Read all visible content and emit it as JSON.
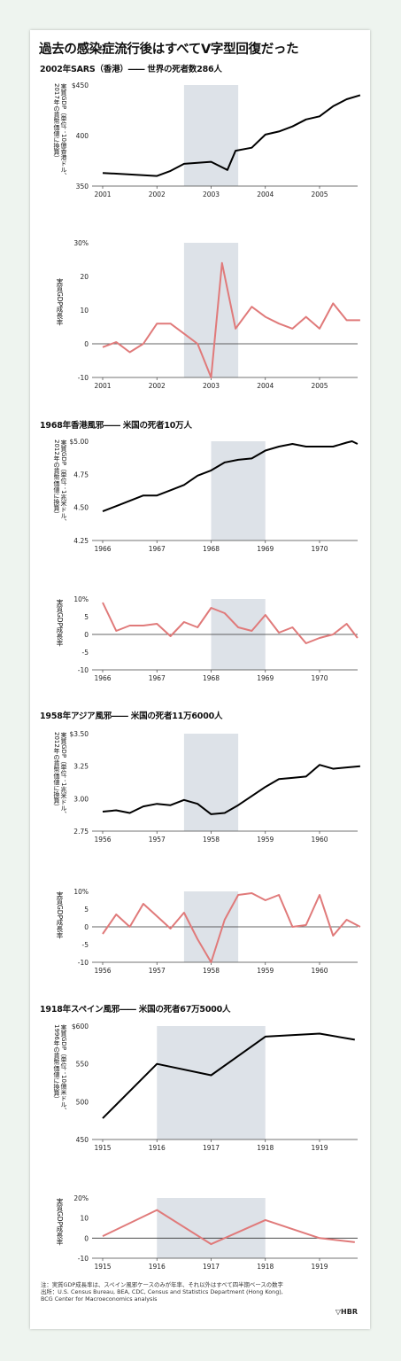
{
  "title": "過去の感染症流行後はすべてV字型回復だった",
  "note_line1": "注：実質GDP成長率は、スペイン風邪ケースのみが年率、それ以外はすべて四半期ベースの数字",
  "note_line2": "出所：U.S. Census Bureau, BEA, CDC, Census and Statistics Department (Hong Kong),",
  "note_line3": "BCG Center for Macroeconomics analysis",
  "logo": "▽HBR",
  "chart_data": [
    {
      "id": "sars",
      "section_title": "2002年SARS（香港）―― 世界の死者数286人",
      "xticks": [
        "2001",
        "2002",
        "2003",
        "2004",
        "2005"
      ],
      "xrange": [
        2001,
        2006
      ],
      "shade": [
        2002.5,
        2003.5
      ],
      "gdp": {
        "type": "line",
        "ylabel_line1": "実質GDP（単位：10億香港ドル、",
        "ylabel_line2": "2017年の貨幣価値に換算）",
        "yticks": [
          "$450",
          "400",
          "350"
        ],
        "ylim": [
          350,
          450
        ],
        "x": [
          2001.0,
          2002.0,
          2002.25,
          2002.5,
          2003.0,
          2003.3,
          2003.45,
          2003.75,
          2004.0,
          2004.25,
          2004.5,
          2004.75,
          2005.0,
          2005.25,
          2005.5,
          2005.75
        ],
        "values": [
          363,
          360,
          365,
          372,
          374,
          366,
          385,
          388,
          401,
          404,
          409,
          416,
          419,
          429,
          436,
          440
        ]
      },
      "growth": {
        "type": "line",
        "ylabel": "実質GDP成長率",
        "yticks": [
          "30%",
          "20",
          "10",
          "0",
          "-10"
        ],
        "ylim": [
          -10,
          30
        ],
        "x": [
          2001.0,
          2001.25,
          2001.5,
          2001.75,
          2002.0,
          2002.25,
          2002.5,
          2002.75,
          2003.0,
          2003.2,
          2003.45,
          2003.75,
          2004.0,
          2004.25,
          2004.5,
          2004.75,
          2005.0,
          2005.25,
          2005.5,
          2005.75
        ],
        "values": [
          -1,
          0.5,
          -2.5,
          0,
          6,
          6,
          3,
          0,
          -10,
          24,
          4.5,
          11,
          8,
          6,
          4.5,
          8,
          4.5,
          12,
          7,
          7
        ]
      }
    },
    {
      "id": "hk1968",
      "section_title": "1968年香港風邪―― 米国の死者10万人",
      "xticks": [
        "1966",
        "1967",
        "1968",
        "1969",
        "1970"
      ],
      "xrange": [
        1966,
        1971
      ],
      "shade": [
        1968.0,
        1969.0
      ],
      "gdp": {
        "type": "line",
        "ylabel_line1": "実質GDP（単位：1兆米ドル、",
        "ylabel_line2": "2012年の貨幣価値に換算）",
        "yticks": [
          "$5.00",
          "4.75",
          "4.50",
          "4.25"
        ],
        "ylim": [
          4.25,
          5.0
        ],
        "x": [
          1966.0,
          1966.25,
          1966.5,
          1966.75,
          1967.0,
          1967.25,
          1967.5,
          1967.75,
          1968.0,
          1968.25,
          1968.5,
          1968.75,
          1969.0,
          1969.25,
          1969.5,
          1969.75,
          1970.0,
          1970.25,
          1970.5,
          1970.6,
          1970.7
        ],
        "values": [
          4.47,
          4.51,
          4.55,
          4.59,
          4.59,
          4.63,
          4.67,
          4.74,
          4.78,
          4.84,
          4.86,
          4.87,
          4.93,
          4.96,
          4.98,
          4.96,
          4.96,
          4.96,
          4.99,
          5.0,
          4.98
        ]
      },
      "growth": {
        "type": "line",
        "ylabel": "実質GDP成長率",
        "yticks": [
          "10%",
          "5",
          "0",
          "-5",
          "-10"
        ],
        "ylim": [
          -10,
          10
        ],
        "x": [
          1966.0,
          1966.25,
          1966.5,
          1966.75,
          1967.0,
          1967.25,
          1967.5,
          1967.75,
          1968.0,
          1968.25,
          1968.5,
          1968.75,
          1969.0,
          1969.25,
          1969.5,
          1969.75,
          1970.0,
          1970.25,
          1970.5,
          1970.7
        ],
        "values": [
          9,
          1,
          2.5,
          2.5,
          3,
          -0.5,
          3.5,
          2,
          7.5,
          6,
          2,
          1,
          5.5,
          0.5,
          2,
          -2.5,
          -1,
          0,
          3,
          -1
        ]
      }
    },
    {
      "id": "asia1958",
      "section_title": "1958年アジア風邪―― 米国の死者11万6000人",
      "xticks": [
        "1956",
        "1957",
        "1958",
        "1959",
        "1960"
      ],
      "xrange": [
        1956,
        1961
      ],
      "shade": [
        1957.5,
        1958.5
      ],
      "gdp": {
        "type": "line",
        "ylabel_line1": "実質GDP（単位：1兆米ドル、",
        "ylabel_line2": "2012年の貨幣価値に換算）",
        "yticks": [
          "$3.50",
          "3.25",
          "3.00",
          "2.75"
        ],
        "ylim": [
          2.75,
          3.5
        ],
        "x": [
          1956.0,
          1956.25,
          1956.5,
          1956.75,
          1957.0,
          1957.25,
          1957.5,
          1957.75,
          1958.0,
          1958.25,
          1958.5,
          1958.75,
          1959.0,
          1959.25,
          1959.5,
          1959.75,
          1960.0,
          1960.25,
          1960.5,
          1960.75
        ],
        "values": [
          2.9,
          2.91,
          2.89,
          2.94,
          2.96,
          2.95,
          2.99,
          2.96,
          2.88,
          2.89,
          2.95,
          3.02,
          3.09,
          3.15,
          3.16,
          3.17,
          3.26,
          3.23,
          3.24,
          3.25
        ]
      },
      "growth": {
        "type": "line",
        "ylabel": "実質GDP成長率",
        "yticks": [
          "10%",
          "5",
          "0",
          "-5",
          "-10"
        ],
        "ylim": [
          -10,
          10
        ],
        "x": [
          1956.0,
          1956.25,
          1956.5,
          1956.75,
          1957.0,
          1957.25,
          1957.5,
          1957.75,
          1958.0,
          1958.25,
          1958.5,
          1958.75,
          1959.0,
          1959.25,
          1959.5,
          1959.75,
          1960.0,
          1960.25,
          1960.5,
          1960.75
        ],
        "values": [
          -2,
          3.5,
          0,
          6.5,
          3,
          -0.5,
          4,
          -3.5,
          -10,
          2,
          9,
          9.5,
          7.5,
          9,
          0,
          0.5,
          9,
          -2.5,
          2,
          0
        ]
      }
    },
    {
      "id": "spain1918",
      "section_title": "1918年スペイン風邪―― 米国の死者67万5000人",
      "xticks": [
        "1915",
        "1916",
        "1917",
        "1918",
        "1919"
      ],
      "xrange": [
        1915,
        1920
      ],
      "shade": [
        1916.0,
        1918.0
      ],
      "gdp": {
        "type": "line",
        "ylabel_line1": "実質GDP（単位：10億米ドル、",
        "ylabel_line2": "1996年の貨幣価値に換算）",
        "yticks": [
          "$600",
          "550",
          "500",
          "450"
        ],
        "ylim": [
          450,
          600
        ],
        "x": [
          1915,
          1916,
          1917,
          1918,
          1919,
          1919.65
        ],
        "values": [
          478,
          550,
          535,
          586,
          590,
          582
        ]
      },
      "growth": {
        "type": "line",
        "ylabel": "実質GDP成長率",
        "yticks": [
          "20%",
          "10",
          "0",
          "-10"
        ],
        "ylim": [
          -10,
          20
        ],
        "x": [
          1915,
          1916,
          1917,
          1918,
          1919,
          1919.65
        ],
        "values": [
          1,
          14,
          -3,
          9,
          0,
          -2
        ]
      }
    }
  ],
  "colors": {
    "gdp_line": "#000000",
    "growth_line": "#e07a7a",
    "shade": "#dde2e8",
    "card": "#ffffff",
    "background": "#eef4ef"
  }
}
